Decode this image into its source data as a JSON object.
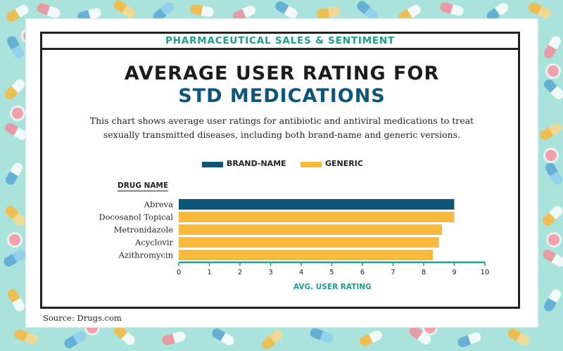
{
  "banner": "PHARMACEUTICAL SALES & SENTIMENT",
  "title_line1": "AVERAGE USER RATING FOR",
  "title_line2": "STD MEDICATIONS",
  "subtitle": "This chart shows average user ratings for antibiotic and antiviral medications to treat sexually transmitted diseases, including both brand-name and generic versions.",
  "source_label": "Source:",
  "source_name": "Drugs.com",
  "colors": {
    "brand": "#0e5677",
    "generic": "#f9b93b",
    "accent": "#1a9e8f",
    "background": "#a9e3dc"
  },
  "chart_data": {
    "type": "bar",
    "orientation": "horizontal",
    "category_header": "DRUG NAME",
    "categories": [
      "Abreva",
      "Docosanol Topical",
      "Metronidazole",
      "Acyclovir",
      "Azithromycin"
    ],
    "values": [
      9.0,
      9.0,
      8.6,
      8.5,
      8.3
    ],
    "bar_type": [
      "Brand-Name",
      "Generic",
      "Generic",
      "Generic",
      "Generic"
    ],
    "legend": [
      {
        "name": "BRAND-NAME",
        "color": "#0e5677"
      },
      {
        "name": "GENERIC",
        "color": "#f9b93b"
      }
    ],
    "legend_position": "top-center",
    "xlabel": "AVG. USER RATING",
    "xlim": [
      0,
      10
    ],
    "xticks": [
      "0",
      "1",
      "2",
      "3",
      "4",
      "5",
      "6",
      "7",
      "8",
      "9",
      "10"
    ],
    "grid": false
  }
}
